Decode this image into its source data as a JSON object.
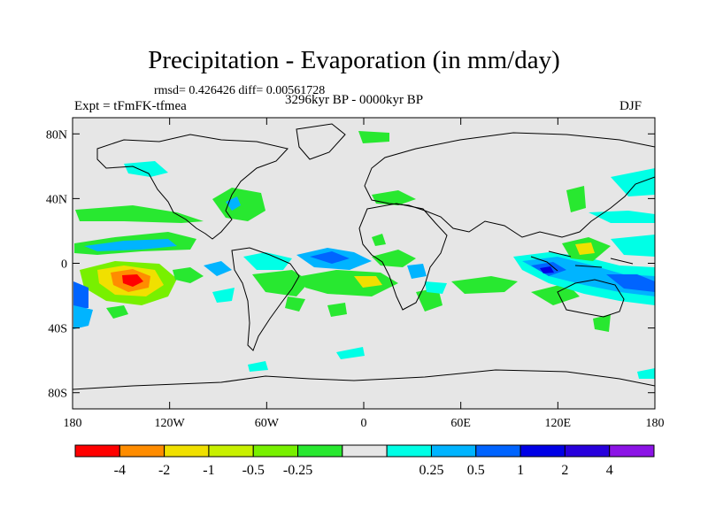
{
  "title": "Precipitation - Evaporation (in mm/day)",
  "stats": "rmsd= 0.426426 diff= 0.00561728",
  "expt": "Expt = tFmFK-tfmea",
  "period": "3296kyr BP - 0000kyr BP",
  "season": "DJF",
  "map": {
    "lon_labels": [
      "180",
      "120W",
      "60W",
      "0",
      "60E",
      "120E",
      "180"
    ],
    "lat_labels": [
      "80N",
      "40N",
      "0",
      "40S",
      "80S"
    ],
    "lon_range": [
      -180,
      180
    ],
    "lat_range": [
      -90,
      90
    ],
    "background_color": "#e6e6e6"
  },
  "colorbar": {
    "colors": [
      "#ff0000",
      "#ff8c00",
      "#f0e000",
      "#c8f000",
      "#78f000",
      "#28e830",
      "#e6e6e6",
      "#00ffe6",
      "#00b4ff",
      "#0064ff",
      "#0000e6",
      "#2800dc",
      "#8c14e6"
    ],
    "labels": [
      "-4",
      "-2",
      "-1",
      "-0.5",
      "-0.25",
      "0.25",
      "0.5",
      "1",
      "2",
      "4"
    ]
  }
}
